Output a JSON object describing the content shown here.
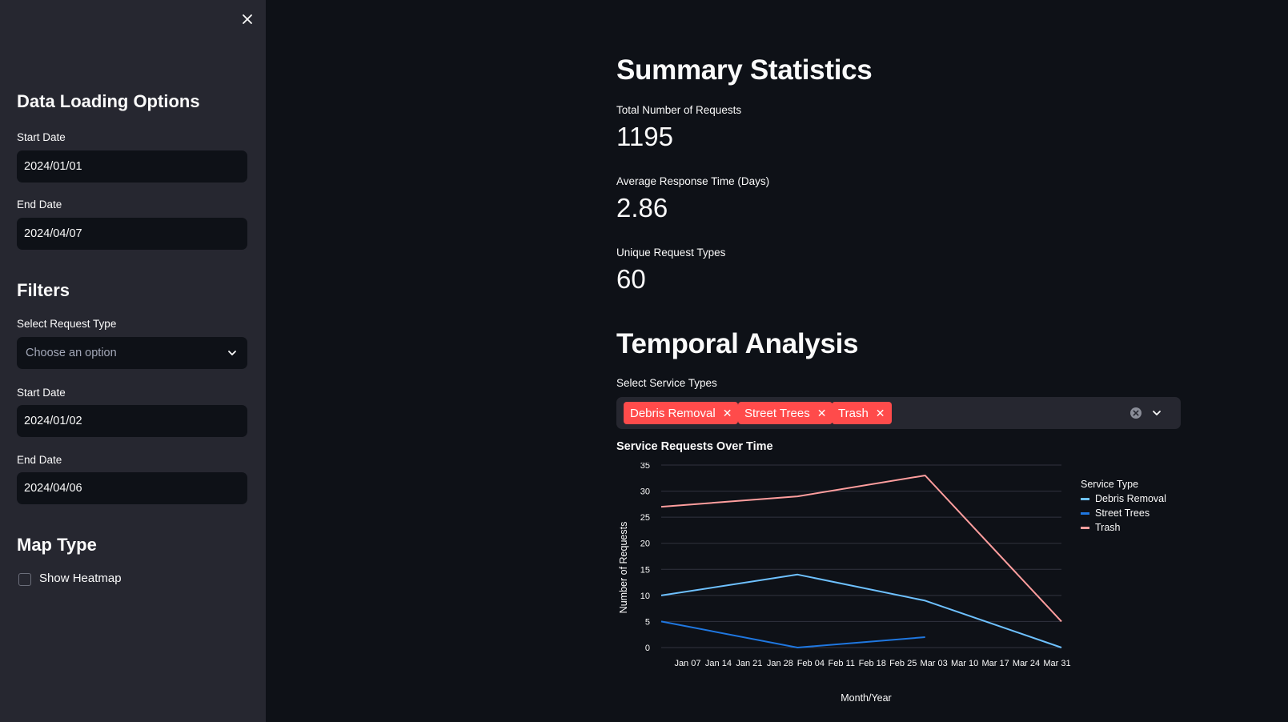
{
  "sidebar": {
    "close_icon": "close-icon",
    "data_loading": {
      "heading": "Data Loading Options",
      "start_date_label": "Start Date",
      "start_date_value": "2024/01/01",
      "end_date_label": "End Date",
      "end_date_value": "2024/04/07"
    },
    "filters": {
      "heading": "Filters",
      "request_type_label": "Select Request Type",
      "request_type_placeholder": "Choose an option",
      "start_date_label": "Start Date",
      "start_date_value": "2024/01/02",
      "end_date_label": "End Date",
      "end_date_value": "2024/04/06"
    },
    "map_type": {
      "heading": "Map Type",
      "heatmap_label": "Show Heatmap",
      "heatmap_checked": false
    }
  },
  "main": {
    "summary_heading": "Summary Statistics",
    "metrics": [
      {
        "label": "Total Number of Requests",
        "value": "1195"
      },
      {
        "label": "Average Response Time (Days)",
        "value": "2.86"
      },
      {
        "label": "Unique Request Types",
        "value": "60"
      }
    ],
    "temporal_heading": "Temporal Analysis",
    "service_types_label": "Select Service Types",
    "selected_service_types": [
      "Debris Removal",
      "Street Trees",
      "Trash"
    ],
    "tag_color": "#ff4b4b",
    "chart_title": "Service Requests Over Time"
  },
  "chart_data": {
    "type": "line",
    "title": "Service Requests Over Time",
    "xlabel": "Month/Year",
    "ylabel": "Number of Requests",
    "x_ticks": [
      "Jan 07",
      "Jan 14",
      "Jan 21",
      "Jan 28",
      "Feb 04",
      "Feb 11",
      "Feb 18",
      "Feb 25",
      "Mar 03",
      "Mar 10",
      "Mar 17",
      "Mar 24",
      "Mar 31"
    ],
    "y_ticks": [
      0,
      5,
      10,
      15,
      20,
      25,
      30,
      35
    ],
    "ylim": [
      0,
      35
    ],
    "x_range": [
      "Jan 01",
      "Apr 01"
    ],
    "grid": true,
    "legend_title": "Service Type",
    "legend_position": "right",
    "series": [
      {
        "name": "Debris Removal",
        "color": "#6ec1ff",
        "points": [
          {
            "x": "Jan 01",
            "y": 10
          },
          {
            "x": "Feb 01",
            "y": 14
          },
          {
            "x": "Mar 01",
            "y": 9
          },
          {
            "x": "Apr 01",
            "y": 0
          }
        ]
      },
      {
        "name": "Street Trees",
        "color": "#1f77e0",
        "points": [
          {
            "x": "Jan 01",
            "y": 5
          },
          {
            "x": "Feb 01",
            "y": 0
          },
          {
            "x": "Mar 01",
            "y": 2
          }
        ]
      },
      {
        "name": "Trash",
        "color": "#ff9e9e",
        "points": [
          {
            "x": "Jan 01",
            "y": 27
          },
          {
            "x": "Feb 01",
            "y": 29
          },
          {
            "x": "Mar 01",
            "y": 33
          },
          {
            "x": "Apr 01",
            "y": 5
          }
        ]
      }
    ]
  }
}
